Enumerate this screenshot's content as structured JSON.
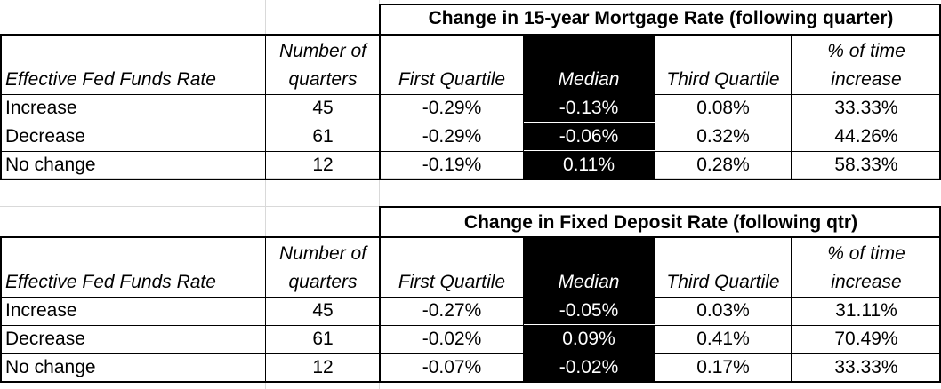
{
  "tables": [
    {
      "title": "Change in 15-year Mortgage Rate (following quarter)",
      "headers": {
        "row_label": "Effective Fed Funds Rate",
        "count_line1": "Number of",
        "count_line2": "quarters",
        "q1": "First Quartile",
        "median": "Median",
        "q3": "Third Quartile",
        "pct_line1": "% of time",
        "pct_line2": "increase"
      },
      "rows": [
        {
          "label": "Increase",
          "count": "45",
          "q1": "-0.29%",
          "median": "-0.13%",
          "q3": "0.08%",
          "pct": "33.33%"
        },
        {
          "label": "Decrease",
          "count": "61",
          "q1": "-0.29%",
          "median": "-0.06%",
          "q3": "0.32%",
          "pct": "44.26%"
        },
        {
          "label": "No change",
          "count": "12",
          "q1": "-0.19%",
          "median": "0.11%",
          "q3": "0.28%",
          "pct": "58.33%"
        }
      ]
    },
    {
      "title": "Change in Fixed Deposit Rate (following qtr)",
      "headers": {
        "row_label": "Effective Fed Funds Rate",
        "count_line1": "Number of",
        "count_line2": "quarters",
        "q1": "First Quartile",
        "median": "Median",
        "q3": "Third Quartile",
        "pct_line1": "% of time",
        "pct_line2": "increase"
      },
      "rows": [
        {
          "label": "Increase",
          "count": "45",
          "q1": "-0.27%",
          "median": "-0.05%",
          "q3": "0.03%",
          "pct": "31.11%"
        },
        {
          "label": "Decrease",
          "count": "61",
          "q1": "-0.02%",
          "median": "0.09%",
          "q3": "0.41%",
          "pct": "70.49%"
        },
        {
          "label": "No change",
          "count": "12",
          "q1": "-0.07%",
          "median": "-0.02%",
          "q3": "0.17%",
          "pct": "33.33%"
        }
      ]
    }
  ]
}
